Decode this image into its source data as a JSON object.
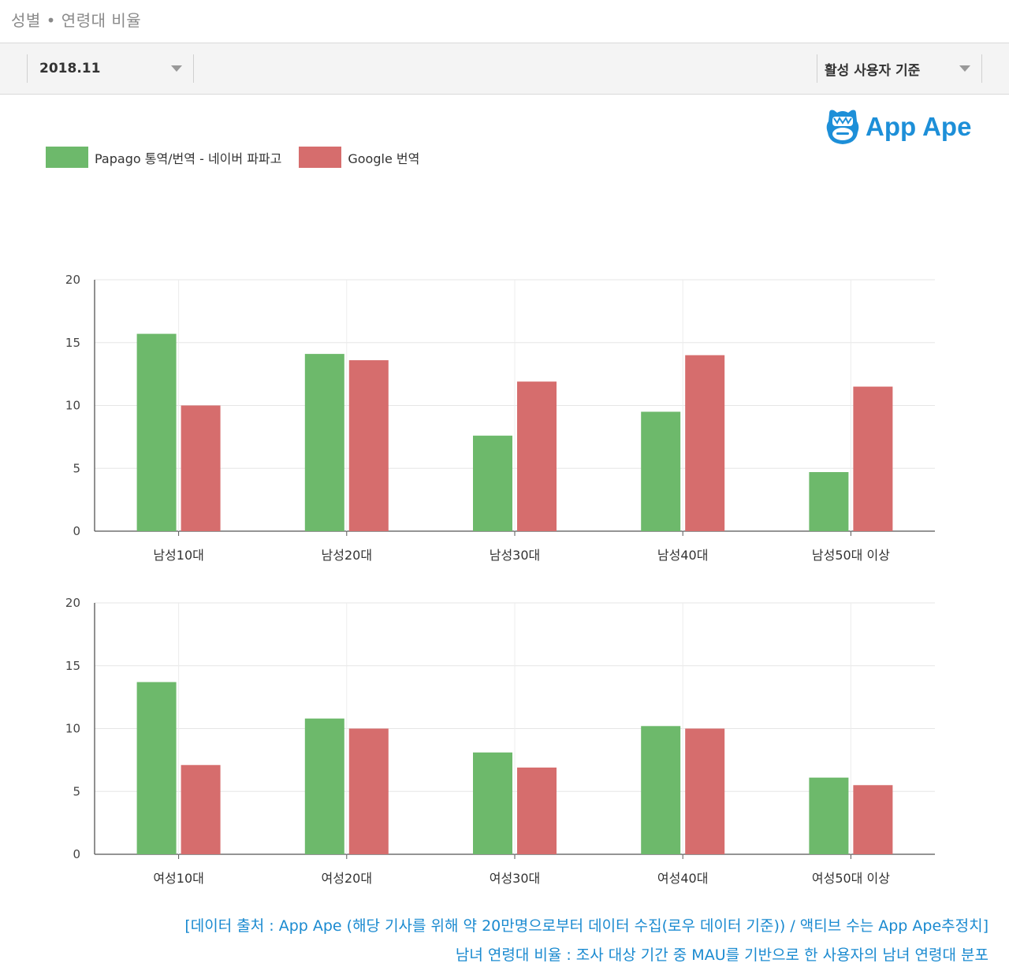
{
  "section_title": "성별 • 연령대 비율",
  "controls": {
    "period_value": "2018.11",
    "metric_value": "활성 사용자 기준"
  },
  "logo": {
    "text": "App Ape",
    "icon": "app-ape-monkey-icon"
  },
  "colors": {
    "papago": "#6db96b",
    "google": "#d66d6d",
    "accent": "#1d8fd8"
  },
  "legend": [
    {
      "name": "Papago 통역/번역 - 네이버 파파고",
      "color": "#6db96b"
    },
    {
      "name": "Google 번역",
      "color": "#d66d6d"
    }
  ],
  "chart_data": [
    {
      "type": "bar",
      "categories": [
        "남성10대",
        "남성20대",
        "남성30대",
        "남성40대",
        "남성50대 이상"
      ],
      "series": [
        {
          "name": "Papago 통역/번역 - 네이버 파파고",
          "values": [
            15.7,
            14.1,
            7.6,
            9.5,
            4.7
          ]
        },
        {
          "name": "Google 번역",
          "values": [
            10.0,
            13.6,
            11.9,
            14.0,
            11.5
          ]
        }
      ],
      "yticks": [
        0,
        5,
        10,
        15,
        20
      ],
      "ylim": [
        0,
        20
      ],
      "grid": true,
      "legend_position": "top-left"
    },
    {
      "type": "bar",
      "categories": [
        "여성10대",
        "여성20대",
        "여성30대",
        "여성40대",
        "여성50대 이상"
      ],
      "series": [
        {
          "name": "Papago 통역/번역 - 네이버 파파고",
          "values": [
            13.7,
            10.8,
            8.1,
            10.2,
            6.1
          ]
        },
        {
          "name": "Google 번역",
          "values": [
            7.1,
            10.0,
            6.9,
            10.0,
            5.5
          ]
        }
      ],
      "yticks": [
        0,
        5,
        10,
        15,
        20
      ],
      "ylim": [
        0,
        20
      ],
      "grid": true,
      "legend_position": "top-left"
    }
  ],
  "footer": {
    "line1": "[데이터 출처 : App Ape (해당 기사를 위해 약 20만명으로부터 데이터 수집(로우 데이터 기준)) / 액티브 수는 App Ape추정치]",
    "line2": "남녀 연령대 비율 : 조사 대상 기간 중 MAU를 기반으로 한 사용자의 남녀 연령대 분포"
  }
}
